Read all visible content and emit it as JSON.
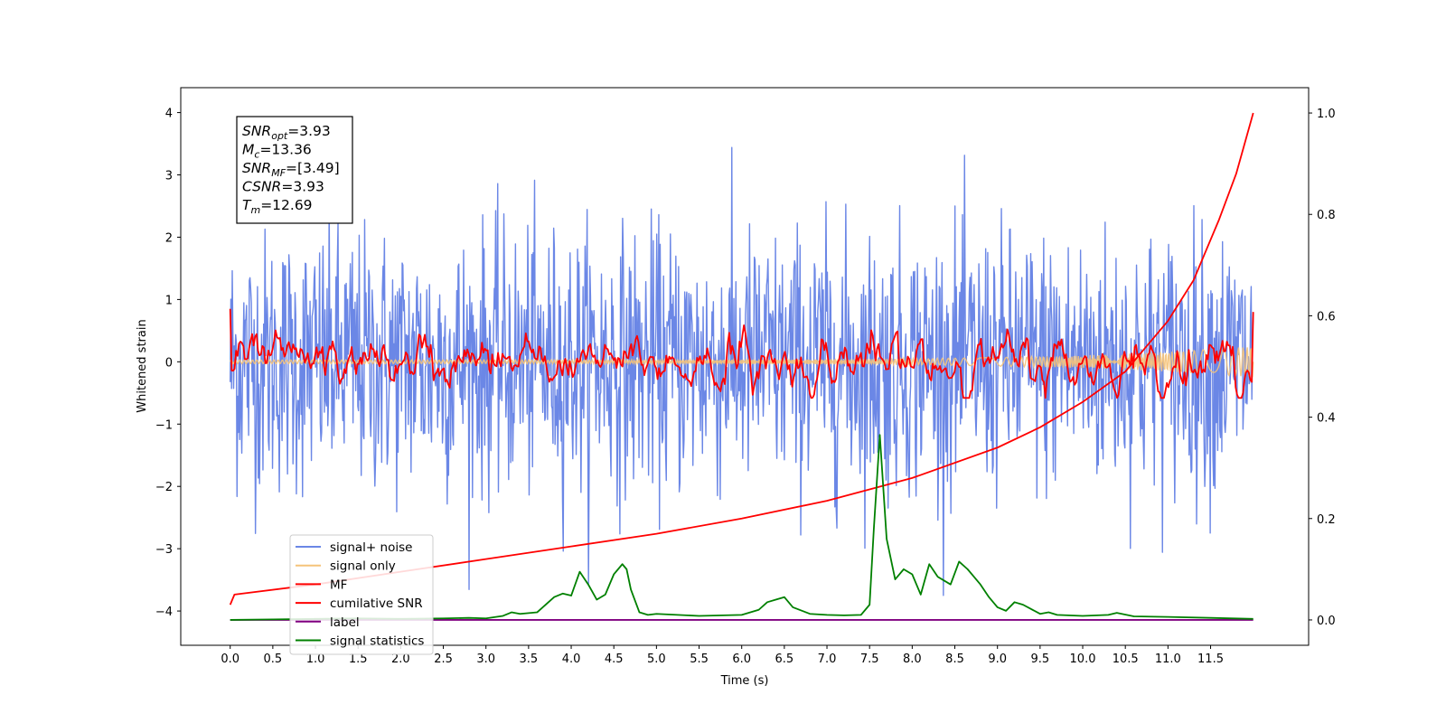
{
  "chart_data": {
    "type": "line",
    "title": "",
    "xlabel": "Time (s)",
    "ylabel": "Whitened strain",
    "xlim": [
      -0.58,
      12.65
    ],
    "ylim": [
      -4.55,
      4.4
    ],
    "y2lim": [
      -0.05,
      1.05
    ],
    "x_ticks": [
      "0.0",
      "0.5",
      "1.0",
      "1.5",
      "2.0",
      "2.5",
      "3.0",
      "3.5",
      "4.0",
      "4.5",
      "5.0",
      "5.5",
      "6.0",
      "6.5",
      "7.0",
      "7.5",
      "8.0",
      "8.5",
      "9.0",
      "9.5",
      "10.0",
      "10.5",
      "11.0",
      "11.5"
    ],
    "y_ticks": [
      "4",
      "3",
      "2",
      "1",
      "0",
      "−1",
      "−2",
      "−3",
      "−4"
    ],
    "y2_ticks": [
      "1.0",
      "0.8",
      "0.6",
      "0.4",
      "0.2",
      "0.0"
    ],
    "grid": false,
    "legend_position": "lower-left",
    "annotation": {
      "lines": [
        {
          "sym": "SNR",
          "sub": "opt",
          "value": "=3.93"
        },
        {
          "sym": "M",
          "sub": "c",
          "value": "=13.36"
        },
        {
          "sym": "SNR",
          "sub": "MF",
          "value": "=[3.49]"
        },
        {
          "sym": "CSNR",
          "sub": "",
          "value": "=3.93"
        },
        {
          "sym": "T",
          "sub": "m",
          "value": "=12.69"
        }
      ]
    },
    "x_start": 0.0,
    "x_end": 12.0,
    "series": [
      {
        "name": "signal+ noise",
        "color": "#6b87e6",
        "axis": "left",
        "values": "random whitened noise, roughly between -3.7 and 4.0"
      },
      {
        "name": "signal only",
        "color": "#f5c37a",
        "axis": "left",
        "values": "flat near 0, growing amplitude to about ±0.25 near t=12"
      },
      {
        "name": "MF",
        "color": "#ff0000",
        "axis": "left",
        "values": "filtered output, roughly between -0.6 and 0.9"
      },
      {
        "name": "cumilative SNR",
        "color": "#ff0000",
        "axis": "right",
        "x": [
          0.0,
          0.05,
          1.0,
          2.0,
          3.0,
          4.0,
          5.0,
          6.0,
          7.0,
          8.0,
          9.0,
          9.5,
          10.0,
          10.5,
          11.0,
          11.3,
          11.6,
          11.8,
          12.0
        ],
        "y": [
          0.03,
          0.05,
          0.07,
          0.095,
          0.12,
          0.145,
          0.17,
          0.2,
          0.235,
          0.28,
          0.34,
          0.38,
          0.43,
          0.49,
          0.59,
          0.67,
          0.79,
          0.88,
          1.0
        ]
      },
      {
        "name": "label",
        "color": "#800080",
        "axis": "right",
        "x": [
          0.0,
          12.0
        ],
        "y": [
          0.0,
          0.0
        ]
      },
      {
        "name": "signal statistics",
        "color": "#008000",
        "axis": "right",
        "x": [
          0.0,
          0.5,
          1.0,
          1.5,
          2.0,
          2.5,
          2.8,
          3.0,
          3.2,
          3.3,
          3.4,
          3.6,
          3.8,
          3.9,
          4.0,
          4.1,
          4.2,
          4.3,
          4.4,
          4.5,
          4.6,
          4.65,
          4.7,
          4.8,
          4.9,
          5.0,
          5.5,
          6.0,
          6.2,
          6.3,
          6.4,
          6.5,
          6.6,
          6.8,
          7.0,
          7.2,
          7.4,
          7.5,
          7.55,
          7.62,
          7.7,
          7.8,
          7.9,
          8.0,
          8.1,
          8.2,
          8.3,
          8.35,
          8.45,
          8.55,
          8.65,
          8.8,
          8.9,
          9.0,
          9.1,
          9.2,
          9.3,
          9.5,
          9.6,
          9.7,
          10.0,
          10.3,
          10.4,
          10.6,
          11.0,
          11.5,
          12.0
        ],
        "y": [
          0.0,
          0.001,
          0.002,
          0.003,
          0.002,
          0.003,
          0.004,
          0.003,
          0.008,
          0.015,
          0.012,
          0.015,
          0.045,
          0.052,
          0.048,
          0.095,
          0.07,
          0.04,
          0.05,
          0.09,
          0.11,
          0.1,
          0.06,
          0.015,
          0.01,
          0.012,
          0.008,
          0.01,
          0.02,
          0.035,
          0.04,
          0.045,
          0.025,
          0.012,
          0.01,
          0.009,
          0.01,
          0.03,
          0.18,
          0.365,
          0.16,
          0.08,
          0.1,
          0.09,
          0.05,
          0.11,
          0.085,
          0.08,
          0.07,
          0.115,
          0.1,
          0.07,
          0.045,
          0.025,
          0.018,
          0.035,
          0.03,
          0.012,
          0.015,
          0.01,
          0.008,
          0.01,
          0.014,
          0.007,
          0.006,
          0.004,
          0.002
        ]
      }
    ]
  }
}
